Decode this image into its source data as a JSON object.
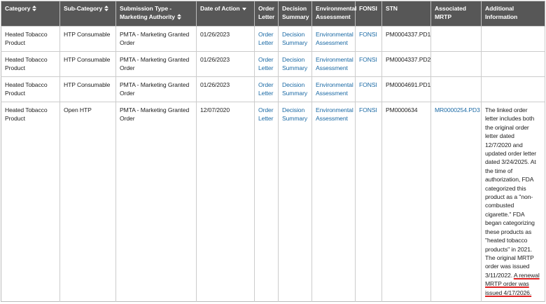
{
  "table": {
    "headers": [
      {
        "text": "Category",
        "sort": "both"
      },
      {
        "text": "Sub-Category",
        "sort": "both"
      },
      {
        "text": "Submission Type - Marketing Authority",
        "sort": "both"
      },
      {
        "text": "Date of Action",
        "sort": "desc"
      },
      {
        "text": "Order Letter"
      },
      {
        "text": "Decision Summary"
      },
      {
        "text": "Environmental Assessment"
      },
      {
        "text": "FONSI"
      },
      {
        "text": "STN"
      },
      {
        "text": "Associated MRTP"
      },
      {
        "text": "Additional Information"
      }
    ],
    "rows": [
      {
        "category": "Heated Tobacco Product",
        "sub_category": "HTP Consumable",
        "submission_type": "PMTA - Marketing Granted Order",
        "date": "01/26/2023",
        "order_letter": "Order Letter",
        "decision_summary": "Decision Summary",
        "environmental_assessment": "Environmental Assessment",
        "fonsi": "FONSI",
        "stn": "PM0004337.PD1"
      },
      {
        "category": "Heated Tobacco Product",
        "sub_category": "HTP Consumable",
        "submission_type": "PMTA - Marketing Granted Order",
        "date": "01/26/2023",
        "order_letter": "Order Letter",
        "decision_summary": "Decision Summary",
        "environmental_assessment": "Environmental Assessment",
        "fonsi": "FONSI",
        "stn": "PM0004337.PD2"
      },
      {
        "category": "Heated Tobacco Product",
        "sub_category": "HTP Consumable",
        "submission_type": "PMTA - Marketing Granted Order",
        "date": "01/26/2023",
        "order_letter": "Order Letter",
        "decision_summary": "Decision Summary",
        "environmental_assessment": "Environmental Assessment",
        "fonsi": "FONSI",
        "stn": "PM0004691.PD1"
      },
      {
        "category": "Heated Tobacco Product",
        "sub_category": "Open HTP",
        "submission_type": "PMTA - Marketing Granted Order",
        "date": "12/07/2020",
        "order_letter": "Order Letter",
        "decision_summary": "Decision Summary",
        "environmental_assessment": "Environmental Assessment",
        "fonsi": "FONSI",
        "stn": "PM0000634",
        "associated_mrtp": "MR0000254.PD3",
        "additional_information": [
          "The linked order letter includes both the original order letter dated 12/7/2020 and updated order letter dated 3/24/2025. At the time of authorization, FDA categorized this product as a \"non-combusted cigarette.\" FDA began categorizing these products as \"heated tobacco products\" in 2021. The original MRTP order was issued 3/11/2022.",
          "A renewal MRTP order was issued 4/17/2026."
        ]
      }
    ]
  }
}
